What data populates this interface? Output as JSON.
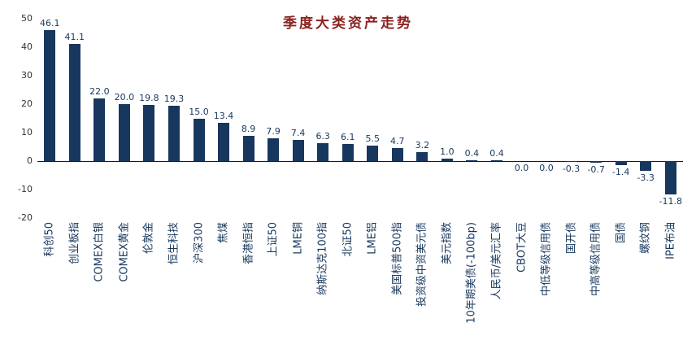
{
  "chart_data": {
    "type": "bar",
    "title": "季度大类资产走势",
    "categories": [
      "科创50",
      "创业板指",
      "COMEX白银",
      "COMEX黄金",
      "伦敦金",
      "恒生科技",
      "沪深300",
      "焦煤",
      "香港恒指",
      "上证50",
      "LME铜",
      "纳斯达克100指",
      "北证50",
      "LME铝",
      "美国标普500指",
      "投资级中资美元债",
      "美元指数",
      "10年期美债(-100bp)",
      "人民币/美元汇率",
      "CBOT大豆",
      "中低等级信用债",
      "国开债",
      "中高等级信用债",
      "国债",
      "螺纹钢",
      "IPE布油"
    ],
    "values": [
      46.1,
      41.1,
      22.0,
      20.0,
      19.8,
      19.3,
      15.0,
      13.4,
      8.9,
      7.9,
      7.4,
      6.3,
      6.1,
      5.5,
      4.7,
      3.2,
      1.0,
      0.4,
      0.4,
      0.0,
      0.0,
      -0.3,
      -0.7,
      -1.4,
      -3.3,
      -11.8
    ],
    "xlabel": "",
    "ylabel": "",
    "ylim": [
      -20,
      50
    ],
    "yticks": [
      50,
      40,
      30,
      20,
      10,
      0,
      -10,
      -20
    ],
    "grid": false,
    "legend": false,
    "value_labels": true,
    "bar_color": "#17375e",
    "value_label_color": "#17375e",
    "category_label_color": "#17375e",
    "axis_tick_color": "#333333",
    "axis_line_color": "#1a1a1a",
    "title_color": "#8b2220",
    "background_color": "#ffffff"
  }
}
